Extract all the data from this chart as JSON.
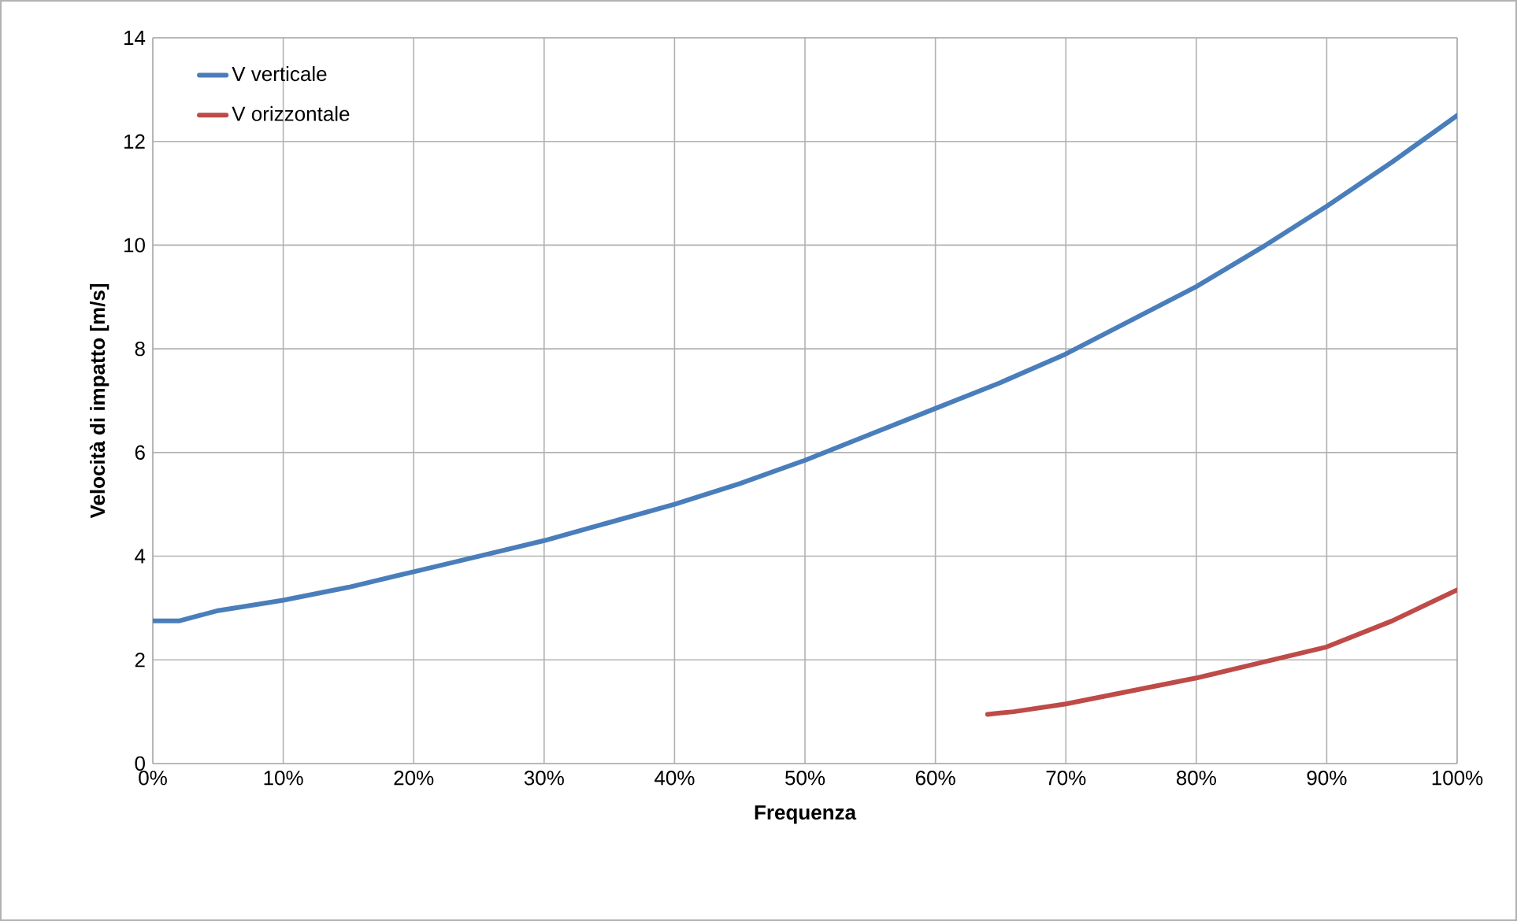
{
  "chart_data": {
    "type": "line",
    "xlabel": "Frequenza",
    "ylabel": "Velocità di impatto [m/s]",
    "xlim": [
      0,
      100
    ],
    "ylim": [
      0,
      14
    ],
    "xticks": [
      {
        "value": 0,
        "label": "0%"
      },
      {
        "value": 10,
        "label": "10%"
      },
      {
        "value": 20,
        "label": "20%"
      },
      {
        "value": 30,
        "label": "30%"
      },
      {
        "value": 40,
        "label": "40%"
      },
      {
        "value": 50,
        "label": "50%"
      },
      {
        "value": 60,
        "label": "60%"
      },
      {
        "value": 70,
        "label": "70%"
      },
      {
        "value": 80,
        "label": "80%"
      },
      {
        "value": 90,
        "label": "90%"
      },
      {
        "value": 100,
        "label": "100%"
      }
    ],
    "yticks": [
      0,
      2,
      4,
      6,
      8,
      10,
      12,
      14
    ],
    "grid": true,
    "legend": "top left",
    "marker": "none",
    "line_style": "solid",
    "series": [
      {
        "name": "V verticale",
        "color": "#4a7ebb",
        "x": [
          0,
          2,
          5,
          10,
          15,
          20,
          25,
          30,
          35,
          40,
          45,
          50,
          55,
          60,
          65,
          70,
          75,
          80,
          85,
          90,
          95,
          100
        ],
        "values": [
          2.75,
          2.75,
          2.95,
          3.15,
          3.4,
          3.7,
          4.0,
          4.3,
          4.65,
          5.0,
          5.4,
          5.85,
          6.35,
          6.85,
          7.35,
          7.9,
          8.55,
          9.2,
          9.95,
          10.75,
          11.6,
          12.5
        ]
      },
      {
        "name": "V orizzontale",
        "color": "#be4b48",
        "x": [
          64,
          66,
          70,
          75,
          80,
          85,
          90,
          95,
          100
        ],
        "values": [
          0.95,
          1.0,
          1.15,
          1.4,
          1.65,
          1.95,
          2.25,
          2.75,
          3.35
        ]
      }
    ]
  }
}
